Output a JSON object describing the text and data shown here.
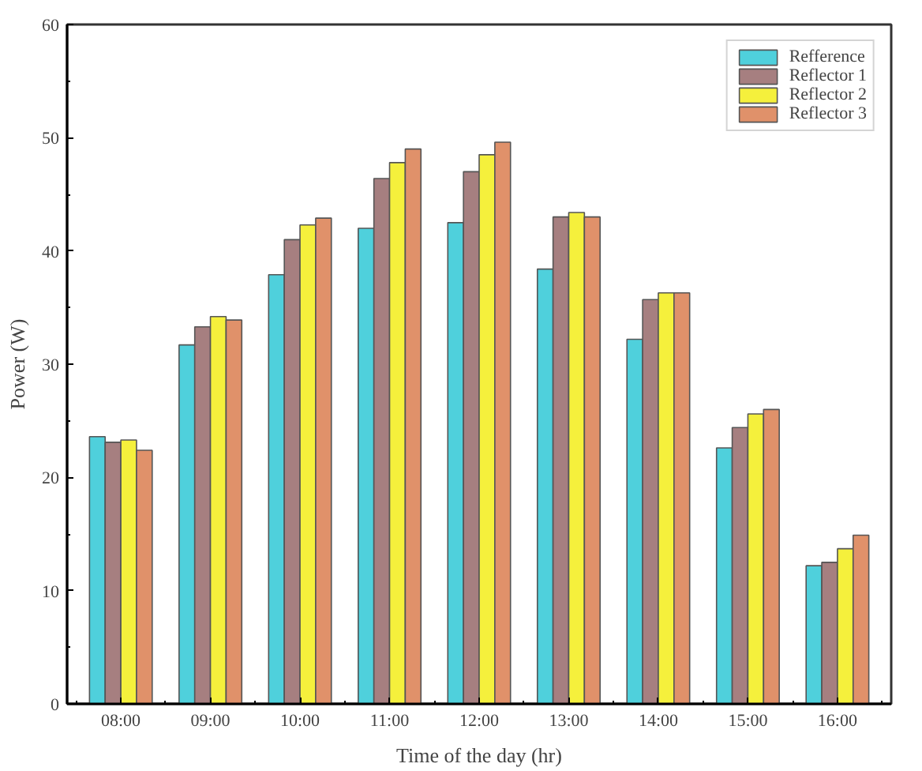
{
  "chart_data": {
    "type": "bar",
    "xlabel": "Time of the day (hr)",
    "ylabel": "Power (W)",
    "categories": [
      "08:00",
      "09:00",
      "10:00",
      "11:00",
      "12:00",
      "13:00",
      "14:00",
      "15:00",
      "16:00"
    ],
    "series": [
      {
        "name": "Refference",
        "color": "#4fd0dc",
        "values": [
          23.6,
          31.7,
          37.9,
          42.0,
          42.5,
          38.4,
          32.2,
          22.6,
          12.2
        ]
      },
      {
        "name": "Reflector 1",
        "color": "#a67f80",
        "values": [
          23.1,
          33.3,
          41.0,
          46.4,
          47.0,
          43.0,
          35.7,
          24.4,
          12.5
        ]
      },
      {
        "name": "Reflector 2",
        "color": "#f5f03c",
        "values": [
          23.3,
          34.2,
          42.3,
          47.8,
          48.5,
          43.4,
          36.3,
          25.6,
          13.7
        ]
      },
      {
        "name": "Reflector 3",
        "color": "#e0916a",
        "values": [
          22.4,
          33.9,
          42.9,
          49.0,
          49.6,
          43.0,
          36.3,
          26.0,
          14.9
        ]
      }
    ],
    "ylim": [
      0,
      60
    ],
    "yticks": [
      0,
      10,
      20,
      30,
      40,
      50,
      60
    ],
    "grid": false,
    "legend": "top right"
  }
}
